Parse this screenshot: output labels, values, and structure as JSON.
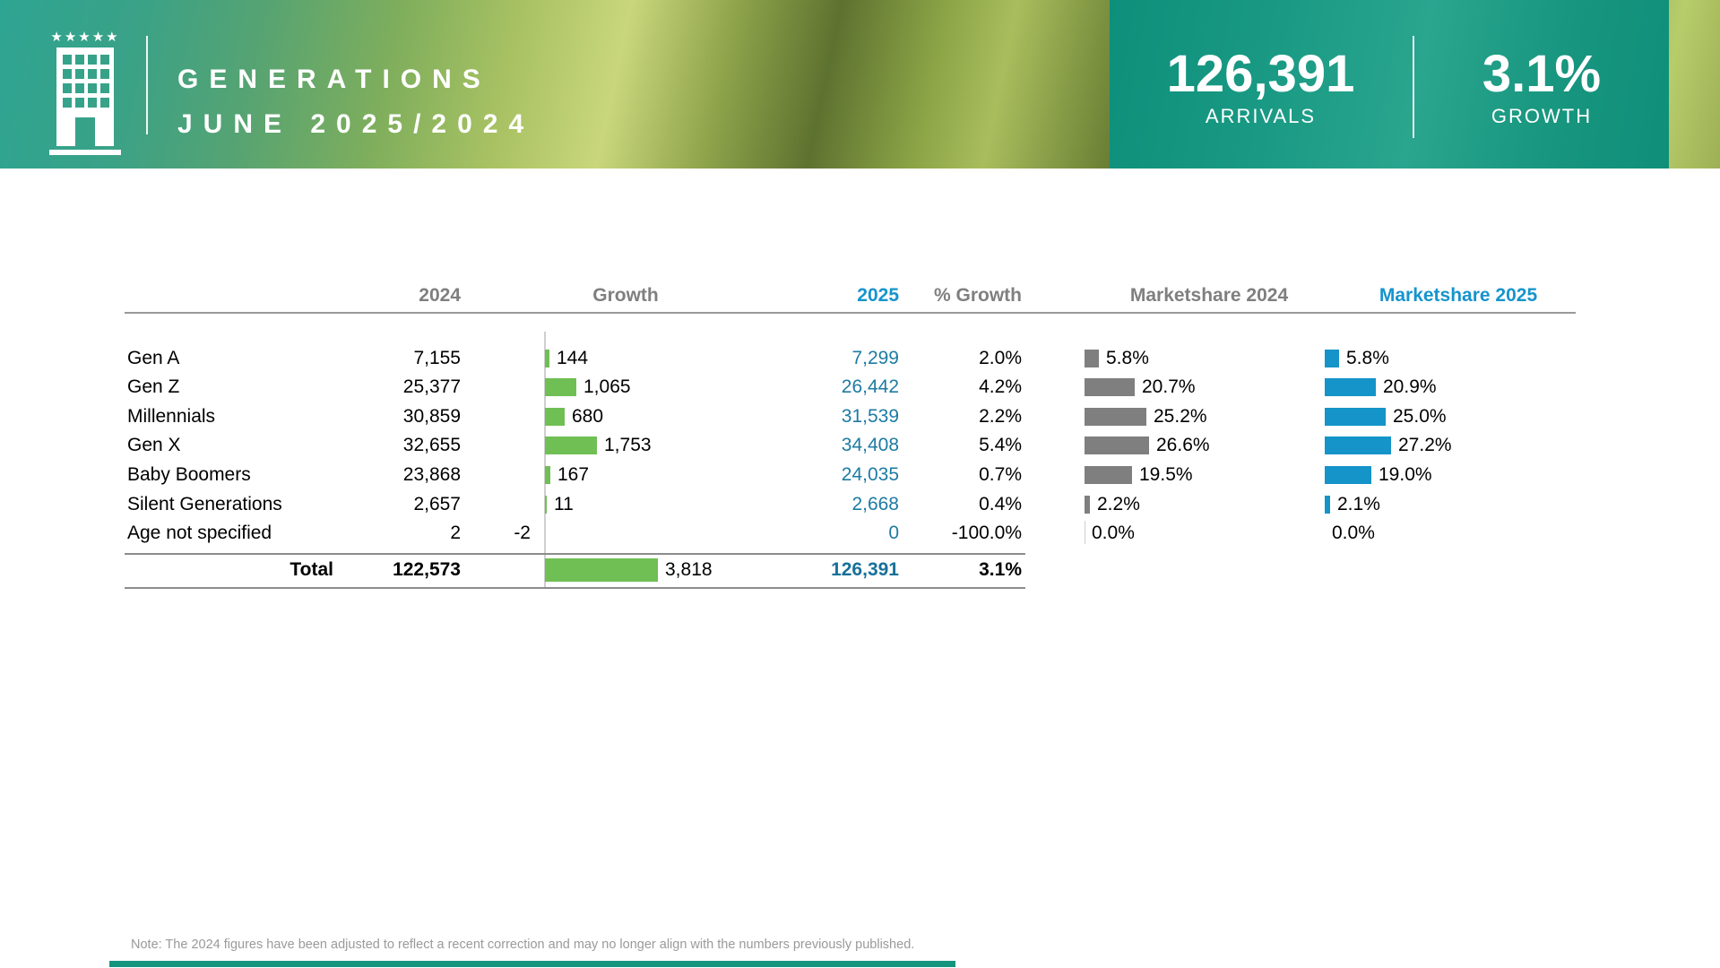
{
  "header": {
    "title_line1": "GENERATIONS",
    "title_line2": "JUNE 2025/2024",
    "logo_stars": "★★★★★",
    "stats": {
      "arrivals_value": "126,391",
      "arrivals_label": "ARRIVALS",
      "growth_value": "3.1%",
      "growth_label": "GROWTH"
    }
  },
  "table": {
    "columns": {
      "y2024": "2024",
      "growth": "Growth",
      "y2025": "2025",
      "pct_growth": "% Growth",
      "ms2024": "Marketshare 2024",
      "ms2025": "Marketshare 2025"
    },
    "rows": [
      {
        "label": "Gen A",
        "y2024": "7,155",
        "neg": "",
        "growth_bar": 144,
        "growth": "144",
        "y2025": "7,299",
        "pct": "2.0%",
        "ms24_bar": 5.8,
        "ms24": "5.8%",
        "ms25_bar": 5.8,
        "ms25": "5.8%"
      },
      {
        "label": "Gen Z",
        "y2024": "25,377",
        "neg": "",
        "growth_bar": 1065,
        "growth": "1,065",
        "y2025": "26,442",
        "pct": "4.2%",
        "ms24_bar": 20.7,
        "ms24": "20.7%",
        "ms25_bar": 20.9,
        "ms25": "20.9%"
      },
      {
        "label": "Millennials",
        "y2024": "30,859",
        "neg": "",
        "growth_bar": 680,
        "growth": "680",
        "y2025": "31,539",
        "pct": "2.2%",
        "ms24_bar": 25.2,
        "ms24": "25.2%",
        "ms25_bar": 25.0,
        "ms25": "25.0%"
      },
      {
        "label": "Gen X",
        "y2024": "32,655",
        "neg": "",
        "growth_bar": 1753,
        "growth": "1,753",
        "y2025": "34,408",
        "pct": "5.4%",
        "ms24_bar": 26.6,
        "ms24": "26.6%",
        "ms25_bar": 27.2,
        "ms25": "27.2%"
      },
      {
        "label": "Baby Boomers",
        "y2024": "23,868",
        "neg": "",
        "growth_bar": 167,
        "growth": "167",
        "y2025": "24,035",
        "pct": "0.7%",
        "ms24_bar": 19.5,
        "ms24": "19.5%",
        "ms25_bar": 19.0,
        "ms25": "19.0%"
      },
      {
        "label": "Silent Generations",
        "y2024": "2,657",
        "neg": "",
        "growth_bar": 11,
        "growth": "11",
        "y2025": "2,668",
        "pct": "0.4%",
        "ms24_bar": 2.2,
        "ms24": "2.2%",
        "ms25_bar": 2.1,
        "ms25": "2.1%"
      },
      {
        "label": "Age not specified",
        "y2024": "2",
        "neg": "-2",
        "growth_bar": -2,
        "growth": "",
        "y2025": "0",
        "pct": "-100.0%",
        "ms24_bar": 0,
        "ms24": "0.0%",
        "ms25_bar": 0,
        "ms25": "0.0%"
      }
    ],
    "total": {
      "label": "Total",
      "y2024": "122,573",
      "growth_bar": 3818,
      "growth": "3,818",
      "y2025": "126,391",
      "pct": "3.1%"
    }
  },
  "note": "Note: The 2024 figures have been adjusted to reflect a recent correction and may no longer align with the numbers previously  published.",
  "colors": {
    "growth_bar": "#6fbf54",
    "ms2024_bar": "#7f7f7f",
    "ms2025_bar": "#1494c8",
    "value_2025_text": "#1d7ba3",
    "header_blue_text": "#1694cd",
    "header_gray_text": "#7f7f7f",
    "hero_teal_panel": "#17957e"
  },
  "chart_data": {
    "type": "bar",
    "title": "Generations June 2025/2024 — Arrivals",
    "categories": [
      "Gen A",
      "Gen Z",
      "Millennials",
      "Gen X",
      "Baby Boomers",
      "Silent Generations",
      "Age not specified",
      "Total"
    ],
    "series": [
      {
        "name": "2024",
        "values": [
          7155,
          25377,
          30859,
          32655,
          23868,
          2657,
          2,
          122573
        ]
      },
      {
        "name": "Growth",
        "values": [
          144,
          1065,
          680,
          1753,
          167,
          11,
          -2,
          3818
        ]
      },
      {
        "name": "2025",
        "values": [
          7299,
          26442,
          31539,
          34408,
          24035,
          2668,
          0,
          126391
        ]
      },
      {
        "name": "% Growth",
        "values": [
          2.0,
          4.2,
          2.2,
          5.4,
          0.7,
          0.4,
          -100.0,
          3.1
        ]
      },
      {
        "name": "Marketshare 2024 (%)",
        "values": [
          5.8,
          20.7,
          25.2,
          26.6,
          19.5,
          2.2,
          0.0,
          null
        ]
      },
      {
        "name": "Marketshare 2025 (%)",
        "values": [
          5.8,
          20.9,
          25.0,
          27.2,
          19.0,
          2.1,
          0.0,
          null
        ]
      }
    ],
    "legend_position": "column-headers",
    "grid": false,
    "notes": "Growth shown as green horizontal bars from a zero axis; marketshares as gray (2024) and blue (2025) horizontal bars with data labels."
  }
}
